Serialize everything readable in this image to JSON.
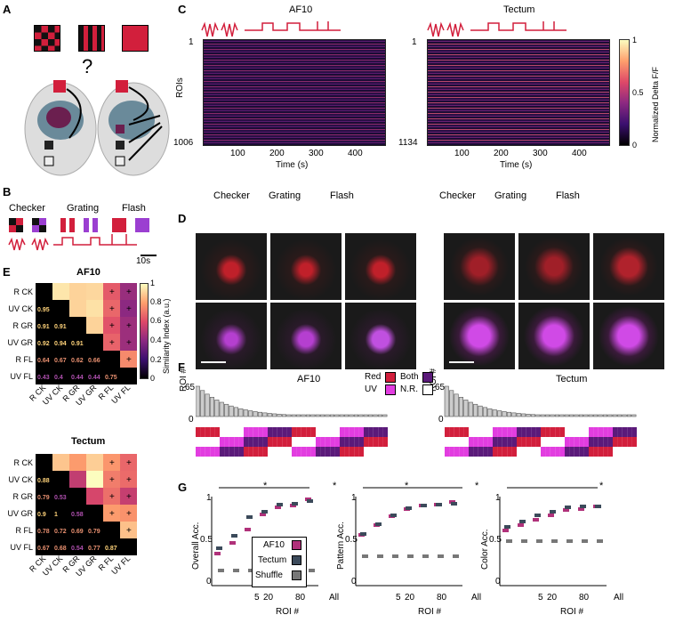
{
  "panels": {
    "A": "A",
    "B": "B",
    "C": "C",
    "D": "D",
    "E": "E",
    "F": "F",
    "G": "G"
  },
  "panelA": {
    "question": "?"
  },
  "panelB": {
    "labels": [
      "Checker",
      "Grating",
      "Flash"
    ],
    "scale": "10s"
  },
  "panelC": {
    "af10": {
      "title": "AF10",
      "y_top": "1",
      "y_bottom": "1006",
      "ylabel": "ROIs",
      "xlabel": "Time (s)",
      "xticks": [
        "100",
        "200",
        "300",
        "400"
      ]
    },
    "tectum": {
      "title": "Tectum",
      "y_top": "1",
      "y_bottom": "1134",
      "xlabel": "Time (s)",
      "xticks": [
        "100",
        "200",
        "300",
        "400"
      ]
    },
    "colorbar": {
      "label": "Normalized Delta F/F",
      "ticks": [
        "1",
        "0.5",
        "0"
      ]
    },
    "stim_labels": [
      "Checker",
      "Grating",
      "Flash"
    ]
  },
  "panelE": {
    "titles": [
      "AF10",
      "Tectum"
    ],
    "labels": [
      "R CK",
      "UV CK",
      "R GR",
      "UV GR",
      "R FL",
      "UV FL"
    ],
    "colorbar": {
      "label": "Similarity Index (a.u.)",
      "ticks": [
        "1",
        "0.8",
        "0.6",
        "0.4",
        "0.2",
        "0"
      ]
    },
    "af10_lower": [
      [
        "0.95"
      ],
      [
        "0.91",
        "0.91"
      ],
      [
        "0.92",
        "0.94",
        "0.91"
      ],
      [
        "0.64",
        "0.67",
        "0.62",
        "0.66"
      ],
      [
        "0.43",
        "0.4",
        "0.44",
        "0.44",
        "0.75"
      ]
    ],
    "tectum_lower": [
      [
        "0.88"
      ],
      [
        "0.79",
        "0.53"
      ],
      [
        "0.9",
        "1",
        "0.58"
      ],
      [
        "0.78",
        "0.72",
        "0.69",
        "0.79"
      ],
      [
        "0.67",
        "0.68",
        "0.54",
        "0.77",
        "0.87"
      ]
    ]
  },
  "panelF": {
    "af10": {
      "title": "AF10",
      "ylabel": "ROI #",
      "ymax": "65",
      "ymin": "0"
    },
    "tectum": {
      "title": "Tectum",
      "ylabel": "ROI #",
      "ymax": "65",
      "ymin": "0"
    },
    "legend": {
      "red": "Red",
      "both": "Both",
      "uv": "UV",
      "nr": "N.R."
    },
    "colors": {
      "red": "#d21f3c",
      "both": "#5b1a7a",
      "uv": "#e23de0",
      "nr": "#ffffff"
    }
  },
  "panelG": {
    "ylabels": [
      "Overall Acc.",
      "Pattern Acc.",
      "Color Acc."
    ],
    "xlabel": "ROI #",
    "xticks": [
      "5",
      "20",
      "80",
      "All"
    ],
    "yticks": [
      "1",
      "0.5",
      "0"
    ],
    "legend": [
      "AF10",
      "Tectum",
      "Shuffle"
    ],
    "star": "*",
    "colors": {
      "af10": "#b0317a",
      "tectum": "#3b4a5a",
      "shuffle": "#777777"
    }
  },
  "chart_data": [
    {
      "type": "line",
      "title": "",
      "ylabel": "Overall Acc.",
      "xlabel": "ROI #",
      "x": [
        "5",
        "10",
        "20",
        "40",
        "80",
        "100",
        "All"
      ],
      "ylim": [
        0,
        1
      ],
      "series": [
        {
          "name": "AF10",
          "values": [
            0.36,
            0.48,
            0.63,
            0.8,
            0.88,
            0.9,
            0.97
          ]
        },
        {
          "name": "Tectum",
          "values": [
            0.42,
            0.56,
            0.77,
            0.83,
            0.91,
            0.92,
            0.95
          ]
        },
        {
          "name": "Shuffle",
          "values": [
            0.17,
            0.17,
            0.17,
            0.17,
            0.17,
            0.17,
            0.17
          ]
        }
      ]
    },
    {
      "type": "line",
      "title": "",
      "ylabel": "Pattern Acc.",
      "xlabel": "ROI #",
      "x": [
        "5",
        "10",
        "20",
        "40",
        "80",
        "100",
        "All"
      ],
      "ylim": [
        0,
        1
      ],
      "series": [
        {
          "name": "AF10",
          "values": [
            0.57,
            0.68,
            0.78,
            0.86,
            0.9,
            0.91,
            0.94
          ]
        },
        {
          "name": "Tectum",
          "values": [
            0.58,
            0.69,
            0.79,
            0.87,
            0.9,
            0.91,
            0.92
          ]
        },
        {
          "name": "Shuffle",
          "values": [
            0.33,
            0.33,
            0.33,
            0.33,
            0.33,
            0.33,
            0.33
          ]
        }
      ]
    },
    {
      "type": "line",
      "title": "",
      "ylabel": "Color Acc.",
      "xlabel": "ROI #",
      "x": [
        "5",
        "10",
        "20",
        "40",
        "80",
        "100",
        "All"
      ],
      "ylim": [
        0,
        1
      ],
      "series": [
        {
          "name": "AF10",
          "values": [
            0.62,
            0.68,
            0.74,
            0.79,
            0.85,
            0.86,
            0.89
          ]
        },
        {
          "name": "Tectum",
          "values": [
            0.66,
            0.72,
            0.79,
            0.83,
            0.88,
            0.89,
            0.89
          ]
        },
        {
          "name": "Shuffle",
          "values": [
            0.5,
            0.5,
            0.5,
            0.5,
            0.5,
            0.5,
            0.5
          ]
        }
      ]
    }
  ]
}
